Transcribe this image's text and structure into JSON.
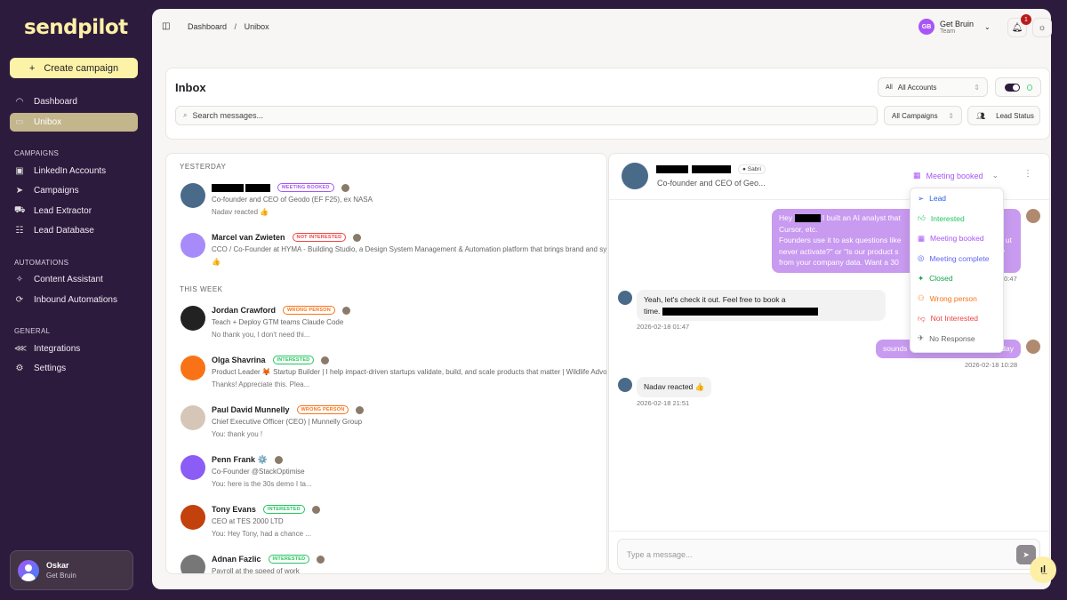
{
  "app": {
    "logo": "sendpilot",
    "create_campaign": "Create campaign"
  },
  "sidebar": {
    "main": [
      {
        "label": "Dashboard",
        "icon": "gauge-icon"
      },
      {
        "label": "Unibox",
        "icon": "message-icon",
        "active": true
      }
    ],
    "sections": [
      {
        "title": "CAMPAIGNS",
        "items": [
          {
            "label": "LinkedIn Accounts",
            "icon": "linkedin-icon"
          },
          {
            "label": "Campaigns",
            "icon": "send-icon"
          },
          {
            "label": "Lead Extractor",
            "icon": "car-icon"
          },
          {
            "label": "Lead Database",
            "icon": "database-icon"
          }
        ]
      },
      {
        "title": "AUTOMATIONS",
        "items": [
          {
            "label": "Content Assistant",
            "icon": "sparkle-icon"
          },
          {
            "label": "Inbound Automations",
            "icon": "automation-icon"
          }
        ]
      },
      {
        "title": "GENERAL",
        "items": [
          {
            "label": "Integrations",
            "icon": "share-icon"
          },
          {
            "label": "Settings",
            "icon": "gear-icon"
          }
        ]
      }
    ],
    "user": {
      "name": "Oskar",
      "org": "Get Bruin"
    }
  },
  "topbar": {
    "breadcrumb": [
      "Dashboard",
      "Unibox"
    ],
    "separator": "/",
    "workspace": {
      "initials": "GB",
      "name": "Get Bruin",
      "role": "Team"
    },
    "notifications": "1"
  },
  "inbox": {
    "title": "Inbox",
    "accounts_prefix": "All",
    "accounts": "All Accounts",
    "search_placeholder": "Search messages...",
    "campaigns": "All Campaigns",
    "lead_status": "Lead Status"
  },
  "list": {
    "groups": [
      {
        "label": "YESTERDAY",
        "items": [
          {
            "name": "",
            "badge": "MEETING BOOKED",
            "badge_type": "mb",
            "subtitle": "Co-founder and CEO of Geodo (EF F25), ex NASA",
            "preview": "Nadav reacted 👍",
            "redacted": true
          },
          {
            "name": "Marcel van Zwieten",
            "badge": "NOT INTERESTED",
            "badge_type": "ni",
            "subtitle": "CCO / Co-Founder at HYMA - Building Studio, a Design System Management & Automation platform that brings brand and sys",
            "preview": "👍"
          }
        ]
      },
      {
        "label": "THIS WEEK",
        "items": [
          {
            "name": "Jordan Crawford",
            "badge": "WRONG PERSON",
            "badge_type": "wp",
            "subtitle": "Teach + Deploy GTM teams Claude Code",
            "preview": "No thank you, I don't need thi..."
          },
          {
            "name": "Olga Shavrina",
            "badge": "INTERESTED",
            "badge_type": "in",
            "subtitle": "Product Leader 🦊 Startup Builder | I help impact-driven startups validate, build, and scale products that matter | Wildlife Advo",
            "preview": "Thanks! Appreciate this. Plea..."
          },
          {
            "name": "Paul David Munnelly",
            "badge": "WRONG PERSON",
            "badge_type": "wp",
            "subtitle": "Chief Executive Officer (CEO) | Munnelly Group",
            "preview": "You: thank you !"
          },
          {
            "name": "Penn Frank ⚙️",
            "badge": "",
            "badge_type": "",
            "subtitle": "Co-Founder @StackOptimise",
            "preview": "You: here is the 30s demo I ta..."
          },
          {
            "name": "Tony Evans",
            "badge": "INTERESTED",
            "badge_type": "in",
            "subtitle": "CEO at TES 2000 LTD",
            "preview": "You: Hey Tony, had a chance ..."
          },
          {
            "name": "Adnan Fazlic",
            "badge": "INTERESTED",
            "badge_type": "in",
            "subtitle": "Payroll at the speed of work",
            "preview": ""
          }
        ]
      }
    ]
  },
  "chat": {
    "header": {
      "sender_tag": "Sabri",
      "subtitle": "Co-founder and CEO of Geo...",
      "status": "Meeting booked"
    },
    "messages": [
      {
        "dir": "out",
        "lines": [
          "Hey",
          "I built an AI analyst that",
          "Cursor, etc.",
          "Founders use it to ask questions like",
          "ut",
          "never activate?\" or \"Is our product s",
          "y",
          "from your company data. Want a 30"
        ],
        "time": "20:47"
      },
      {
        "dir": "in",
        "lines": [
          "Yeah, let's check it out. Feel free to book a",
          "time."
        ],
        "time": "2026-02-18 01:47"
      },
      {
        "dir": "out",
        "lines": [
          "sounds",
          "day"
        ],
        "time": "2026-02-18 10:28"
      },
      {
        "dir": "in",
        "lines": [
          "Nadav reacted 👍"
        ],
        "time": "2026-02-18 21:51"
      }
    ],
    "input_placeholder": "Type a message..."
  },
  "status_menu": [
    {
      "label": "Lead",
      "color": "#2563eb",
      "icon": "send-icon"
    },
    {
      "label": "Interested",
      "color": "#22c55e",
      "icon": "thumbs-up-icon"
    },
    {
      "label": "Meeting booked",
      "color": "#a855f7",
      "icon": "calendar-icon"
    },
    {
      "label": "Meeting complete",
      "color": "#6366f1",
      "icon": "check-circle-icon"
    },
    {
      "label": "Closed",
      "color": "#16a34a",
      "icon": "party-icon"
    },
    {
      "label": "Wrong person",
      "color": "#f97316",
      "icon": "user-x-icon"
    },
    {
      "label": "Not Interested",
      "color": "#ef4444",
      "icon": "thumbs-down-icon"
    },
    {
      "label": "No Response",
      "color": "#666666",
      "icon": "rocket-icon"
    }
  ],
  "colors": {
    "sidebar": "#2d1b3d",
    "accent": "#fdf3a8",
    "bubble": "#c89af0",
    "active_nav": "#c3b58c"
  }
}
